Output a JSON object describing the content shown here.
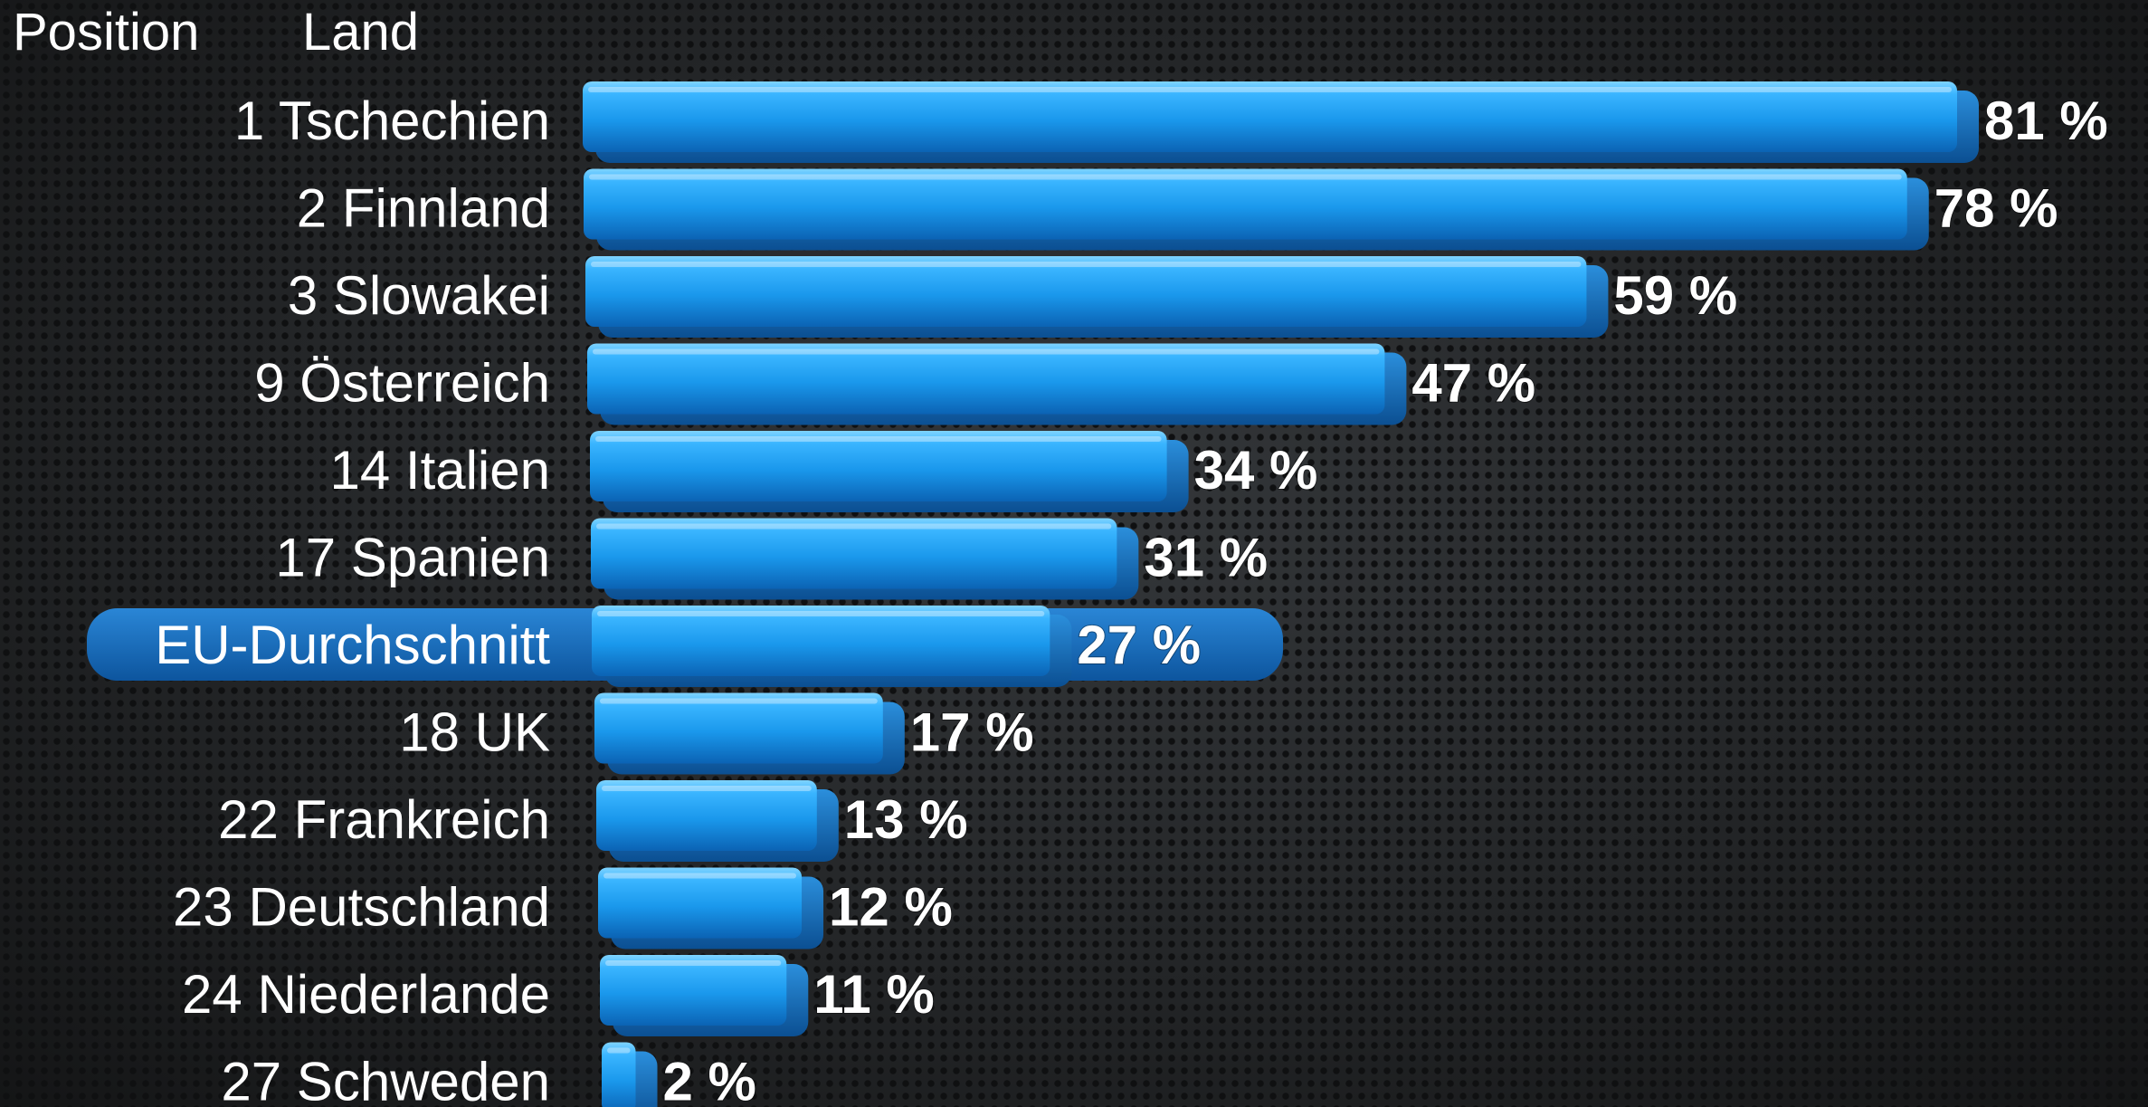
{
  "header": {
    "position_label": "Position",
    "country_label": "Land"
  },
  "chart_data": {
    "type": "bar",
    "orientation": "horizontal",
    "categories": [
      "1 Tschechien",
      "2 Finnland",
      "3 Slowakei",
      "9 Österreich",
      "14 Italien",
      "17 Spanien",
      "EU-Durchschnitt",
      "18 UK",
      "22 Frankreich",
      "23 Deutschland",
      "24 Niederlande",
      "27 Schweden"
    ],
    "values": [
      81,
      78,
      59,
      47,
      34,
      31,
      27,
      17,
      13,
      12,
      11,
      2
    ],
    "value_labels": [
      "81 %",
      "78 %",
      "59 %",
      "47 %",
      "34 %",
      "31 %",
      "27 %",
      "17 %",
      "13 %",
      "12 %",
      "11 %",
      "2 %"
    ],
    "highlight": "EU-Durchschnitt",
    "xlim": [
      0,
      81
    ],
    "grid": false,
    "colors": {
      "bar_light": "#38b4ff",
      "bar_mid": "#1a93e8",
      "bar_dark": "#0a5fae",
      "highlight": "#1670c2",
      "text": "#ffffff"
    }
  }
}
